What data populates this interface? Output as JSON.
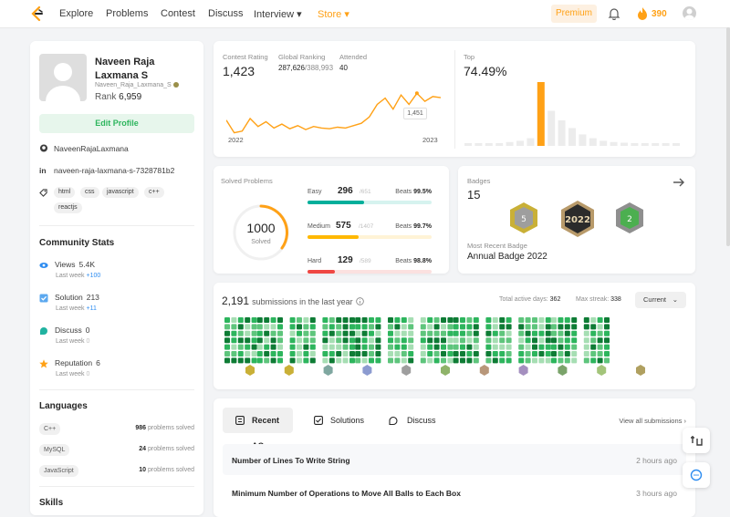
{
  "nav": {
    "links": [
      "Explore",
      "Problems",
      "Contest",
      "Discuss",
      "Interview ▾"
    ],
    "store": "Store ▾",
    "premium": "Premium",
    "streak": "390"
  },
  "profile": {
    "name": "Naveen Raja Laxmana S",
    "handle": "Naveen_Raja_Laxmana_S",
    "rank_label": "Rank",
    "rank": "6,959",
    "edit": "Edit Profile",
    "github": "NaveenRajaLaxmana",
    "linkedin": "naveen-raja-laxmana-s-7328781b2",
    "tags": [
      "html",
      "css",
      "javascript",
      "c++",
      "reactjs"
    ]
  },
  "community": {
    "title": "Community Stats",
    "items": [
      {
        "label": "Views",
        "value": "5.4K",
        "sub": "Last week",
        "delta": "+100",
        "color": "#2d8cf0"
      },
      {
        "label": "Solution",
        "value": "213",
        "sub": "Last week",
        "delta": "+11",
        "color": "#2d8cf0"
      },
      {
        "label": "Discuss",
        "value": "0",
        "sub": "Last week",
        "delta": "0",
        "color": "#8c8c8c"
      },
      {
        "label": "Reputation",
        "value": "6",
        "sub": "Last week",
        "delta": "0",
        "color": "#8c8c8c"
      }
    ]
  },
  "languages": {
    "title": "Languages",
    "items": [
      {
        "name": "C++",
        "count": "986",
        "suffix": "problems solved"
      },
      {
        "name": "MySQL",
        "count": "24",
        "suffix": "problems solved"
      },
      {
        "name": "JavaScript",
        "count": "10",
        "suffix": "problems solved"
      }
    ]
  },
  "skills_title": "Skills",
  "contest": {
    "rating_label": "Contest Rating",
    "rating": "1,423",
    "global_label": "Global Ranking",
    "global": "287,626",
    "global_total": "/388,993",
    "attended_label": "Attended",
    "attended": "40",
    "year_start": "2022",
    "year_end": "2023",
    "tooltip": "1,451",
    "top_label": "Top",
    "top": "74.49%",
    "line": [
      1280,
      1200,
      1210,
      1290,
      1240,
      1270,
      1230,
      1255,
      1225,
      1245,
      1220,
      1240,
      1230,
      1225,
      1235,
      1230,
      1245,
      1260,
      1300,
      1380,
      1420,
      1350,
      1440,
      1380,
      1451,
      1400,
      1430,
      1423
    ],
    "hist": [
      2,
      3,
      3,
      4,
      6,
      8,
      12,
      100,
      55,
      40,
      28,
      18,
      12,
      8,
      6,
      5,
      4,
      3,
      3,
      3,
      3
    ]
  },
  "solved": {
    "title": "Solved Problems",
    "total": "1000",
    "total_label": "Solved",
    "rows": [
      {
        "name": "Easy",
        "count": "296",
        "total": "/651",
        "beats_label": "Beats",
        "beats": "99.5%",
        "fill": 0.455,
        "color": "#00af9b",
        "bg": "#d6f3ef"
      },
      {
        "name": "Medium",
        "count": "575",
        "total": "/1407",
        "beats_label": "Beats",
        "beats": "99.7%",
        "fill": 0.409,
        "color": "#ffb800",
        "bg": "#fff3d6"
      },
      {
        "name": "Hard",
        "count": "129",
        "total": "/589",
        "beats_label": "Beats",
        "beats": "98.8%",
        "fill": 0.219,
        "color": "#ef4743",
        "bg": "#fbe1e0"
      }
    ]
  },
  "badges": {
    "title": "Badges",
    "count": "15",
    "recent_label": "Most Recent Badge",
    "recent": "Annual Badge 2022"
  },
  "submissions": {
    "count": "2,191",
    "text": "submissions in the last year",
    "active_label": "Total active days:",
    "active": "362",
    "streak_label": "Max streak:",
    "streak": "338",
    "period": "Current"
  },
  "recent": {
    "tabs": [
      "Recent AC",
      "Solutions",
      "Discuss"
    ],
    "view_all": "View all submissions",
    "rows": [
      {
        "title": "Number of Lines To Write String",
        "time": "2 hours ago"
      },
      {
        "title": "Minimum Number of Operations to Move All Balls to Each Box",
        "time": "3 hours ago"
      }
    ]
  }
}
